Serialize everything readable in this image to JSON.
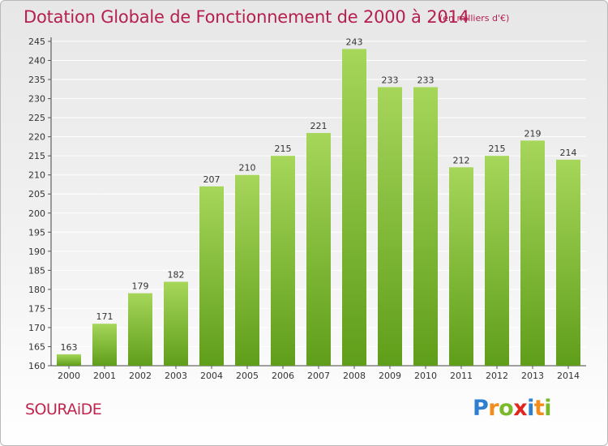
{
  "title": "Dotation Globale de Fonctionnement de 2000 à 2014",
  "subtitle": "(en milliers d'€)",
  "commune": "SOURAiDE",
  "brand": {
    "p": "P",
    "r": "r",
    "o": "o",
    "x": "x",
    "i1": "i",
    "t": "t",
    "i2": "i"
  },
  "colors": {
    "title": "#b5204f",
    "bar_top": "#a6d65a",
    "bar_bottom": "#5f9e1a",
    "grid": "#ffffff"
  },
  "chart_data": {
    "type": "bar",
    "title": "Dotation Globale de Fonctionnement de 2000 à 2014",
    "subtitle": "(en milliers d'€)",
    "xlabel": "",
    "ylabel": "",
    "categories": [
      "2000",
      "2001",
      "2002",
      "2003",
      "2004",
      "2005",
      "2006",
      "2007",
      "2008",
      "2009",
      "2010",
      "2011",
      "2012",
      "2013",
      "2014"
    ],
    "values": [
      163,
      171,
      179,
      182,
      207,
      210,
      215,
      221,
      243,
      233,
      233,
      212,
      215,
      219,
      214
    ],
    "ylim": [
      160,
      245
    ],
    "yticks": [
      160,
      165,
      170,
      175,
      180,
      185,
      190,
      195,
      200,
      205,
      210,
      215,
      220,
      225,
      230,
      235,
      240,
      245
    ],
    "grid": true,
    "legend": "none"
  }
}
